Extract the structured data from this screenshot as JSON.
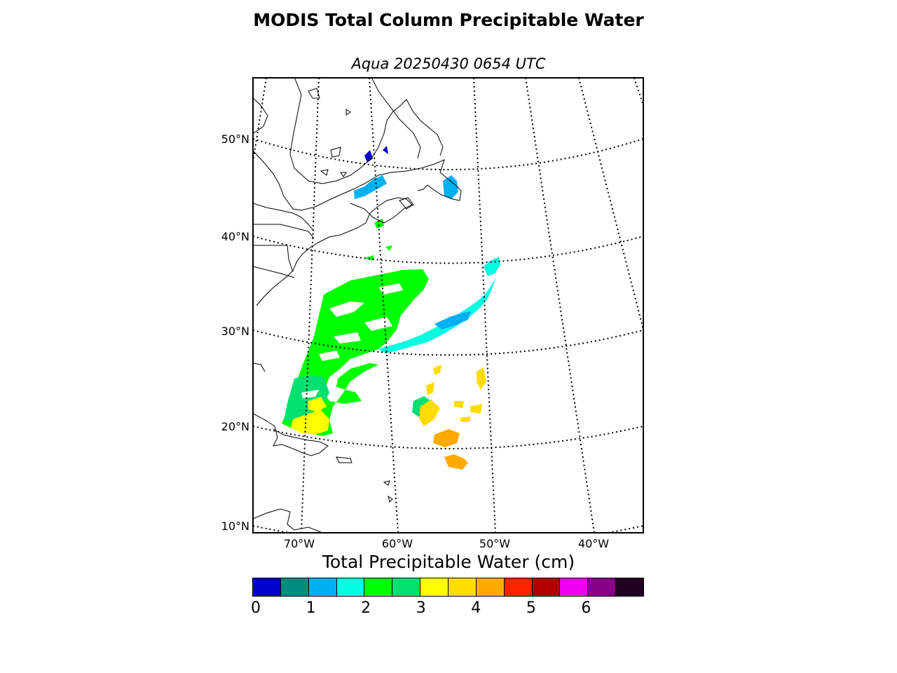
{
  "title": "MODIS Total Column Precipitable Water",
  "subtitle": "Aqua 20250430 0654 UTC",
  "map": {
    "lat_labels": [
      "50°N",
      "40°N",
      "30°N",
      "20°N",
      "10°N"
    ],
    "lon_labels": [
      "70°W",
      "60°W",
      "50°W",
      "40°W"
    ],
    "graticule_style": "dotted",
    "background": "#ffffff",
    "coastline_color": "#000000"
  },
  "colorbar": {
    "title": "Total Precipitable Water (cm)",
    "tick_labels": [
      "0",
      "1",
      "2",
      "3",
      "4",
      "5",
      "6"
    ],
    "range": [
      0,
      7
    ],
    "bin_width": 0.5,
    "colors": [
      "#0000cc",
      "#008b80",
      "#00b0f0",
      "#00ffe0",
      "#00ff00",
      "#00e070",
      "#ffff00",
      "#ffdd00",
      "#ffaa00",
      "#ff2200",
      "#b00000",
      "#ee00ee",
      "#880088",
      "#220022"
    ]
  }
}
